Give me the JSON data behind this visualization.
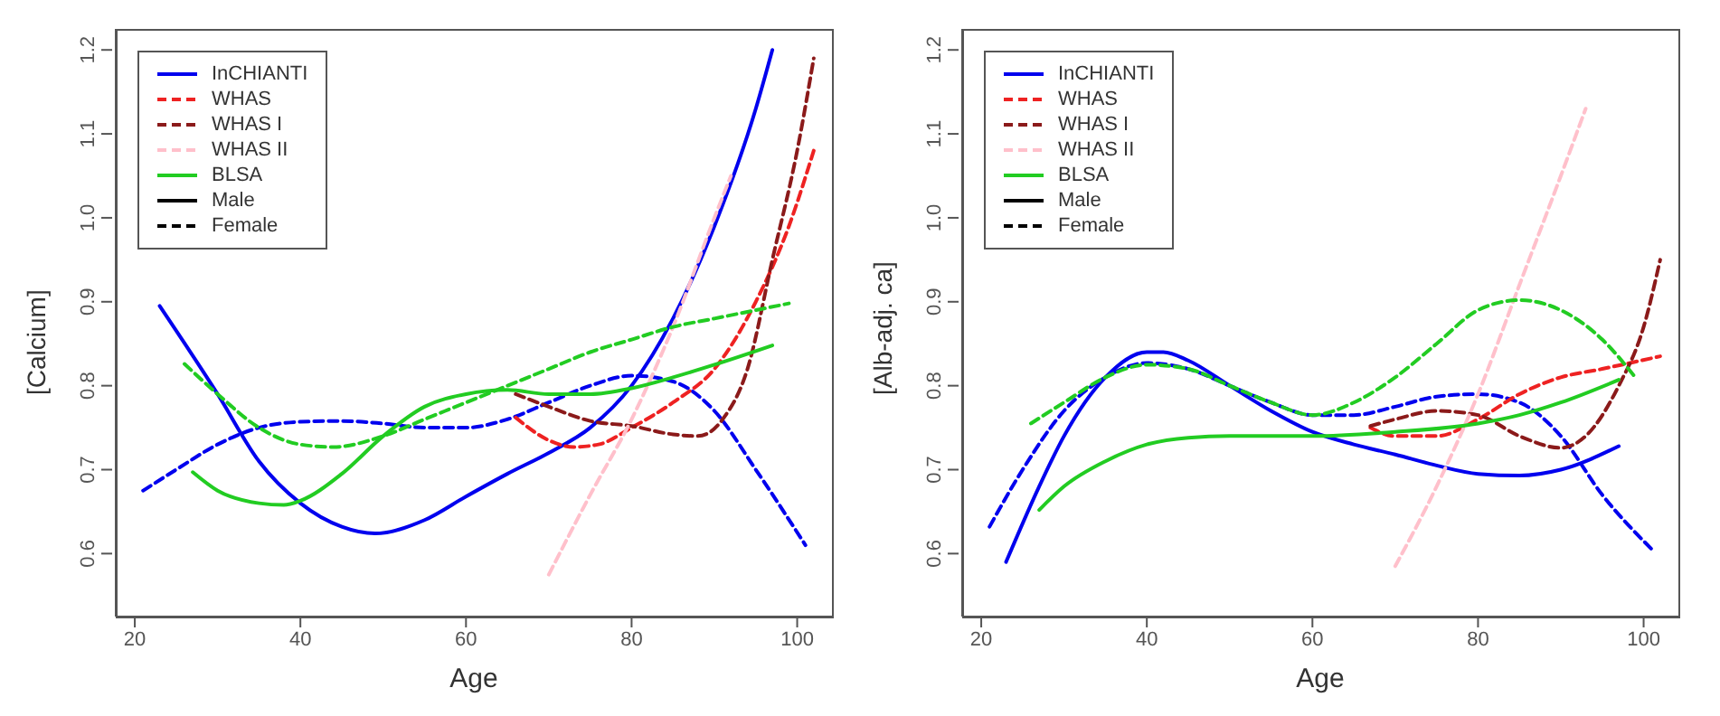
{
  "chart_data": [
    {
      "type": "line",
      "xlabel": "Age",
      "ylabel": "[Calcium]",
      "xlim": [
        17.7,
        104.2
      ],
      "ylim": [
        0.525,
        1.225
      ],
      "xticks": [
        20,
        40,
        60,
        80,
        100
      ],
      "yticks": [
        0.6,
        0.7,
        0.8,
        0.9,
        {
          "value": 1.0,
          "label": "1.0"
        },
        1.1,
        1.2
      ],
      "grid": false,
      "legend": "top left",
      "marker": "none",
      "series": [
        {
          "name": "InCHIANTI",
          "color": "#0000ee",
          "line_style": "solid",
          "x": [
            23,
            30,
            35,
            40,
            45,
            49,
            55,
            60,
            65,
            70,
            75,
            80,
            85,
            90,
            95,
            97
          ],
          "values": [
            0.895,
            0.79,
            0.71,
            0.66,
            0.632,
            0.624,
            0.64,
            0.668,
            0.695,
            0.72,
            0.75,
            0.8,
            0.88,
            0.99,
            1.13,
            1.2
          ]
        },
        {
          "color": "#0000ee",
          "line_style": "dashed",
          "x": [
            21,
            25,
            30,
            35,
            40,
            45,
            50,
            55,
            60,
            65,
            70,
            75,
            80,
            85,
            90,
            95,
            101
          ],
          "values": [
            0.675,
            0.7,
            0.73,
            0.75,
            0.757,
            0.758,
            0.755,
            0.75,
            0.75,
            0.76,
            0.78,
            0.8,
            0.812,
            0.805,
            0.77,
            0.7,
            0.61
          ]
        },
        {
          "name": "WHAS",
          "color": "#ee2222",
          "line_style": "dashed",
          "x": [
            66,
            70,
            73,
            76,
            80,
            85,
            90,
            95,
            99,
            102
          ],
          "values": [
            0.762,
            0.735,
            0.727,
            0.73,
            0.75,
            0.78,
            0.82,
            0.9,
            0.99,
            1.08
          ]
        },
        {
          "name": "WHAS I",
          "color": "#8b1a1a",
          "line_style": "dashed",
          "x": [
            66,
            70,
            75,
            80,
            85,
            88,
            91,
            94,
            97,
            100,
            102
          ],
          "values": [
            0.79,
            0.775,
            0.758,
            0.752,
            0.742,
            0.74,
            0.76,
            0.82,
            0.95,
            1.08,
            1.19
          ]
        },
        {
          "name": "WHAS II",
          "color": "#ffc0cb",
          "line_style": "dashed",
          "x": [
            70,
            75,
            80,
            85,
            90,
            92
          ],
          "values": [
            0.575,
            0.67,
            0.76,
            0.87,
            1.0,
            1.05
          ]
        },
        {
          "name": "BLSA",
          "color": "#22cc22",
          "line_style": "solid",
          "x": [
            27,
            30,
            35,
            38,
            40,
            45,
            50,
            55,
            60,
            65,
            70,
            75,
            80,
            85,
            90,
            97
          ],
          "values": [
            0.697,
            0.675,
            0.66,
            0.658,
            0.663,
            0.695,
            0.74,
            0.775,
            0.79,
            0.795,
            0.79,
            0.79,
            0.797,
            0.81,
            0.825,
            0.848
          ]
        },
        {
          "color": "#22cc22",
          "line_style": "dashed",
          "x": [
            26,
            30,
            35,
            40,
            44,
            50,
            55,
            60,
            65,
            70,
            75,
            80,
            85,
            90,
            95,
            99
          ],
          "values": [
            0.826,
            0.79,
            0.75,
            0.73,
            0.727,
            0.74,
            0.76,
            0.78,
            0.8,
            0.82,
            0.84,
            0.855,
            0.87,
            0.88,
            0.89,
            0.898
          ]
        },
        {
          "name": "Male",
          "color": "#000000",
          "line_style": "solid"
        },
        {
          "name": "Female",
          "color": "#000000",
          "line_style": "dashed"
        }
      ]
    },
    {
      "type": "line",
      "xlabel": "Age",
      "ylabel": "[Alb-adj. ca]",
      "xlim": [
        17.7,
        104.2
      ],
      "ylim": [
        0.525,
        1.225
      ],
      "xticks": [
        20,
        40,
        60,
        80,
        100
      ],
      "yticks": [
        0.6,
        0.7,
        0.8,
        0.9,
        {
          "value": 1.0,
          "label": "1.0"
        },
        1.1,
        1.2
      ],
      "grid": false,
      "legend": "top left",
      "marker": "none",
      "series": [
        {
          "name": "InCHIANTI",
          "color": "#0000ee",
          "line_style": "solid",
          "x": [
            23,
            27,
            30,
            35,
            40,
            42,
            45,
            50,
            55,
            60,
            65,
            70,
            75,
            80,
            85,
            90,
            97
          ],
          "values": [
            0.59,
            0.68,
            0.74,
            0.81,
            0.84,
            0.84,
            0.83,
            0.8,
            0.77,
            0.745,
            0.73,
            0.718,
            0.705,
            0.695,
            0.693,
            0.7,
            0.728
          ]
        },
        {
          "color": "#0000ee",
          "line_style": "dashed",
          "x": [
            21,
            25,
            30,
            35,
            40,
            45,
            50,
            55,
            60,
            65,
            70,
            75,
            80,
            85,
            90,
            95,
            101
          ],
          "values": [
            0.632,
            0.7,
            0.77,
            0.81,
            0.827,
            0.82,
            0.8,
            0.78,
            0.765,
            0.765,
            0.775,
            0.787,
            0.79,
            0.78,
            0.74,
            0.67,
            0.605
          ]
        },
        {
          "name": "WHAS",
          "color": "#ee2222",
          "line_style": "dashed",
          "x": [
            67,
            70,
            75,
            80,
            85,
            90,
            95,
            102
          ],
          "values": [
            0.75,
            0.74,
            0.74,
            0.76,
            0.79,
            0.81,
            0.82,
            0.835
          ]
        },
        {
          "name": "WHAS I",
          "color": "#8b1a1a",
          "line_style": "dashed",
          "x": [
            67,
            70,
            75,
            80,
            85,
            90,
            93,
            97,
            100,
            102
          ],
          "values": [
            0.752,
            0.76,
            0.77,
            0.765,
            0.74,
            0.726,
            0.74,
            0.8,
            0.87,
            0.95
          ]
        },
        {
          "name": "WHAS II",
          "color": "#ffc0cb",
          "line_style": "dashed",
          "x": [
            70,
            75,
            80,
            85,
            90,
            93
          ],
          "values": [
            0.585,
            0.68,
            0.79,
            0.92,
            1.05,
            1.13
          ]
        },
        {
          "name": "BLSA",
          "color": "#22cc22",
          "line_style": "solid",
          "x": [
            27,
            30,
            35,
            40,
            45,
            50,
            60,
            70,
            80,
            85,
            90,
            97
          ],
          "values": [
            0.652,
            0.68,
            0.71,
            0.73,
            0.738,
            0.74,
            0.74,
            0.745,
            0.755,
            0.765,
            0.78,
            0.807
          ]
        },
        {
          "color": "#22cc22",
          "line_style": "dashed",
          "x": [
            26,
            30,
            35,
            40,
            45,
            50,
            55,
            60,
            65,
            70,
            75,
            80,
            85,
            90,
            95,
            99
          ],
          "values": [
            0.755,
            0.78,
            0.81,
            0.825,
            0.82,
            0.8,
            0.78,
            0.765,
            0.78,
            0.81,
            0.85,
            0.89,
            0.902,
            0.89,
            0.855,
            0.81
          ]
        },
        {
          "name": "Male",
          "color": "#000000",
          "line_style": "solid"
        },
        {
          "name": "Female",
          "color": "#000000",
          "line_style": "dashed"
        }
      ]
    }
  ]
}
